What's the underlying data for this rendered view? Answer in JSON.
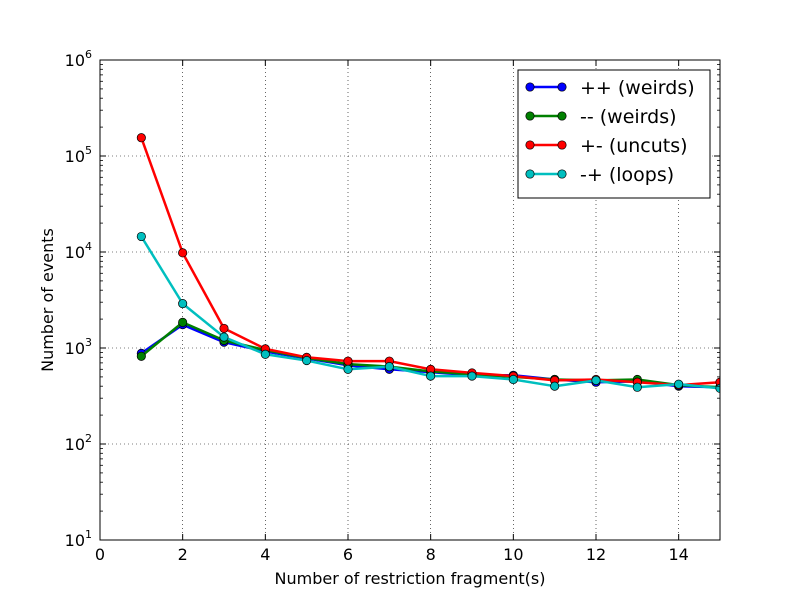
{
  "chart_data": {
    "type": "line",
    "title": "",
    "xlabel": "Number of restriction fragment(s)",
    "ylabel": "Number of events",
    "xlim": [
      0,
      15
    ],
    "ylim": [
      10,
      1000000
    ],
    "yscale": "log",
    "grid": true,
    "legend_position": "top-right",
    "x_ticks": [
      {
        "value": 0,
        "label": "0"
      },
      {
        "value": 2,
        "label": "2"
      },
      {
        "value": 4,
        "label": "4"
      },
      {
        "value": 6,
        "label": "6"
      },
      {
        "value": 8,
        "label": "8"
      },
      {
        "value": 10,
        "label": "10"
      },
      {
        "value": 12,
        "label": "12"
      },
      {
        "value": 14,
        "label": "14"
      }
    ],
    "y_ticks": [
      {
        "value": 10,
        "base": "10",
        "exp": "1"
      },
      {
        "value": 100,
        "base": "10",
        "exp": "2"
      },
      {
        "value": 1000,
        "base": "10",
        "exp": "3"
      },
      {
        "value": 10000,
        "base": "10",
        "exp": "4"
      },
      {
        "value": 100000,
        "base": "10",
        "exp": "5"
      },
      {
        "value": 1000000,
        "base": "10",
        "exp": "6"
      }
    ],
    "x": [
      1,
      2,
      3,
      4,
      5,
      6,
      7,
      8,
      9,
      10,
      11,
      12,
      13,
      14,
      15
    ],
    "series": [
      {
        "name": "++ (weirds)",
        "color": "#0000ff",
        "values": [
          880,
          1750,
          1150,
          920,
          780,
          660,
          600,
          560,
          520,
          520,
          470,
          440,
          450,
          400,
          390
        ]
      },
      {
        "name": "-- (weirds)",
        "color": "#008000",
        "values": [
          820,
          1850,
          1200,
          950,
          790,
          680,
          640,
          570,
          530,
          500,
          470,
          460,
          470,
          410,
          390
        ]
      },
      {
        "name": "+- (uncuts)",
        "color": "#ff0000",
        "values": [
          155000,
          9800,
          1600,
          980,
          800,
          730,
          730,
          600,
          550,
          510,
          460,
          470,
          440,
          410,
          440
        ]
      },
      {
        "name": "-+ (loops)",
        "color": "#00bfbf",
        "values": [
          14500,
          2900,
          1300,
          860,
          740,
          600,
          640,
          510,
          510,
          470,
          400,
          460,
          390,
          420,
          380
        ]
      }
    ]
  }
}
